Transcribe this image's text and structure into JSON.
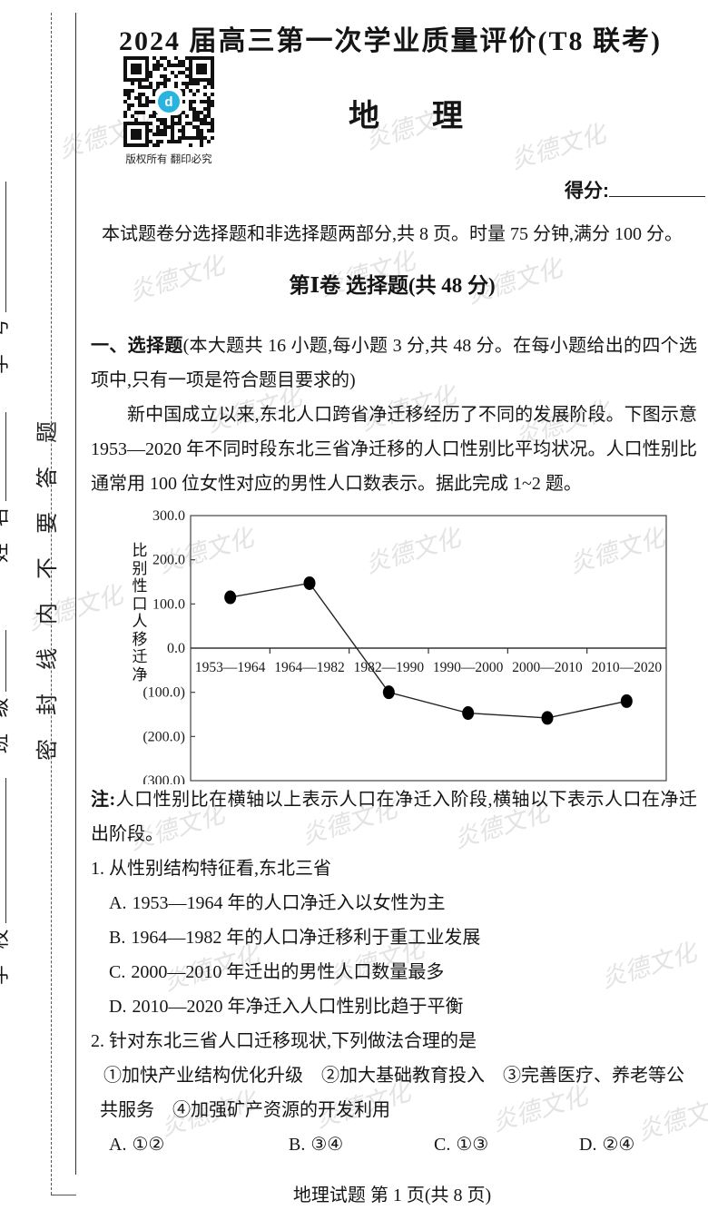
{
  "header": {
    "title": "2024 届高三第一次学业质量评价(T8 联考)",
    "subject_chars": [
      "地",
      "理"
    ],
    "qr_caption": "版权所有 翻印必究",
    "qr_logo_letter": "d",
    "score_label": "得分:",
    "intro": "本试题卷分选择题和非选择题两部分,共 8 页。时量 75 分钟,满分 100 分。",
    "section_title": "第Ⅰ卷  选择题(共 48 分)"
  },
  "seal": {
    "phrase": "密封线内不要答题",
    "fields": [
      {
        "label": "学 校"
      },
      {
        "label": "班 级"
      },
      {
        "label": "姓 名"
      },
      {
        "label": "学 号"
      }
    ]
  },
  "body": {
    "heading_bold": "一、选择题",
    "heading_rest": "(本大题共 16 小题,每小题 3 分,共 48 分。在每小题给出的四个选项中,只有一项是符合题目要求的)",
    "stimulus": "新中国成立以来,东北人口跨省净迁移经历了不同的发展阶段。下图示意 1953—2020 年不同时段东北三省净迁移的人口性别比平均状况。人口性别比通常用 100 位女性对应的男性人口数表示。据此完成 1~2 题。",
    "note_label": "注:",
    "note_text": "人口性别比在横轴以上表示人口在净迁入阶段,横轴以下表示人口在净迁出阶段。",
    "q1": {
      "number": "1.",
      "text": "从性别结构特征看,东北三省",
      "options": [
        {
          "label": "A.",
          "text": "1953—1964 年的人口净迁入以女性为主"
        },
        {
          "label": "B.",
          "text": "1964—1982 年的人口净迁移利于重工业发展"
        },
        {
          "label": "C.",
          "text": "2000—2010 年迁出的男性人口数量最多"
        },
        {
          "label": "D.",
          "text": "2010—2020 年净迁入人口性别比趋于平衡"
        }
      ]
    },
    "q2": {
      "number": "2.",
      "text": "针对东北三省人口迁移现状,下列做法合理的是",
      "items_lines": [
        "①加快产业结构优化升级　②加大基础教育投入　③完善医疗、养老等公",
        "共服务　④加强矿产资源的开发利用"
      ],
      "options": [
        {
          "label": "A.",
          "text": "①②"
        },
        {
          "label": "B.",
          "text": "③④"
        },
        {
          "label": "C.",
          "text": "①③"
        },
        {
          "label": "D.",
          "text": "②④"
        }
      ]
    }
  },
  "chart_data": {
    "type": "line",
    "categories": [
      "1953—1964",
      "1964—1982",
      "1982—1990",
      "1990—2000",
      "2000—2010",
      "2010—2020"
    ],
    "values": [
      115,
      147,
      -100,
      -147,
      -158,
      -120
    ],
    "ylabel": "净迁移人口性别比",
    "ytick_labels": [
      "300.0",
      "200.0",
      "100.0",
      "0.0",
      "(100.0)",
      "(200.0)",
      "(300.0)"
    ],
    "ytick_values": [
      300,
      200,
      100,
      0,
      -100,
      -200,
      -300
    ],
    "ylim": [
      -300,
      300
    ],
    "xlabel": "",
    "title": "",
    "grid": false,
    "legend": "none",
    "marker": "filled-circle",
    "line_color": "#222222"
  },
  "watermark": {
    "text": "炎德文化",
    "color": "#dadada"
  },
  "footer": {
    "text": "地理试题  第 1 页(共 8 页)"
  }
}
